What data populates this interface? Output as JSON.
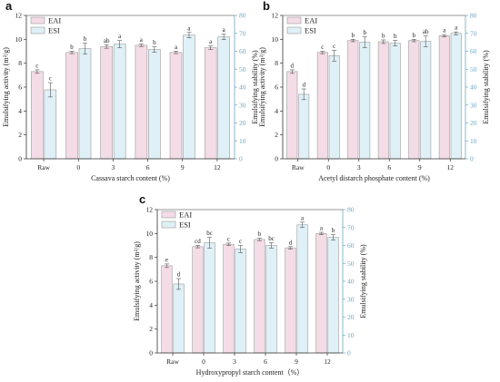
{
  "colors": {
    "eai": "#f4dce6",
    "esi": "#dff0f7",
    "axis_left": "#333333",
    "axis_right": "#6aa6c2",
    "bar_edge": "#9a9a9a"
  },
  "chart_data": [
    {
      "panel": "a",
      "type": "bar",
      "categories": [
        "Raw",
        "0",
        "3",
        "6",
        "9",
        "12"
      ],
      "xlabel": "Cassava starch content (%)",
      "ylabel": "Emulsifying activity (m²/g)",
      "ylabel2": "Emulsifying stability (%)",
      "ylim": [
        0,
        12
      ],
      "yticks": [
        0,
        2,
        4,
        6,
        8,
        10,
        12
      ],
      "y2lim": [
        0,
        80
      ],
      "y2ticks": [
        0,
        10,
        20,
        30,
        40,
        50,
        60,
        70,
        80
      ],
      "legend": [
        "EAI",
        "ESI"
      ],
      "series": [
        {
          "name": "EAI",
          "axis": "left",
          "values": [
            7.3,
            8.9,
            9.4,
            9.5,
            8.9,
            9.3
          ],
          "errors": [
            0.15,
            0.1,
            0.15,
            0.1,
            0.1,
            0.15
          ],
          "labels": [
            "c",
            "b",
            "ab",
            "a",
            "a",
            "a"
          ]
        },
        {
          "name": "ESI",
          "axis": "right",
          "values": [
            38.5,
            61.5,
            64.0,
            61.0,
            69.0,
            68.0
          ],
          "errors": [
            4.0,
            3.0,
            2.0,
            1.5,
            1.5,
            1.5
          ],
          "labels": [
            "c",
            "b",
            "a",
            "b",
            "a",
            "a"
          ]
        }
      ]
    },
    {
      "panel": "b",
      "type": "bar",
      "categories": [
        "Raw",
        "0",
        "3",
        "6",
        "9",
        "12"
      ],
      "xlabel": "Acetyl distarch phosphate content (%)",
      "ylabel": "Emulsifying activity (m²/g)",
      "ylabel2": "Emulsifying stability (%)",
      "ylim": [
        0,
        12
      ],
      "yticks": [
        0,
        2,
        4,
        6,
        8,
        10,
        12
      ],
      "y2lim": [
        0,
        80
      ],
      "y2ticks": [
        0,
        10,
        20,
        30,
        40,
        50,
        60,
        70,
        80
      ],
      "legend": [
        "EAI",
        "ESI"
      ],
      "series": [
        {
          "name": "EAI",
          "axis": "left",
          "values": [
            7.3,
            8.9,
            9.9,
            9.8,
            9.9,
            10.3
          ],
          "errors": [
            0.15,
            0.1,
            0.1,
            0.15,
            0.1,
            0.1
          ],
          "labels": [
            "d",
            "c",
            "b",
            "b",
            "b",
            "a"
          ]
        },
        {
          "name": "ESI",
          "axis": "right",
          "values": [
            36.0,
            57.5,
            65.0,
            64.5,
            65.5,
            70.0
          ],
          "errors": [
            3.0,
            3.0,
            3.0,
            1.5,
            3.0,
            0.8
          ],
          "labels": [
            "d",
            "c",
            "b",
            "b",
            "ab",
            "a"
          ]
        }
      ]
    },
    {
      "panel": "c",
      "type": "bar",
      "categories": [
        "Raw",
        "0",
        "3",
        "6",
        "9",
        "12"
      ],
      "xlabel": "Hydroxypropyl starch content（%）",
      "ylabel": "Emulsifying activity (m²/g)",
      "ylabel2": "Emulsifying stability (%)",
      "ylim": [
        0,
        12
      ],
      "yticks": [
        0,
        2,
        4,
        6,
        8,
        10,
        12
      ],
      "y2lim": [
        0,
        80
      ],
      "y2ticks": [
        0,
        10,
        20,
        30,
        40,
        50,
        60,
        70,
        80
      ],
      "legend": [
        "EAI",
        "ESI"
      ],
      "series": [
        {
          "name": "EAI",
          "axis": "left",
          "values": [
            7.3,
            8.9,
            9.1,
            9.5,
            8.8,
            10.0
          ],
          "errors": [
            0.15,
            0.1,
            0.1,
            0.1,
            0.1,
            0.1
          ],
          "labels": [
            "e",
            "cd",
            "c",
            "b",
            "d",
            "a"
          ]
        },
        {
          "name": "ESI",
          "axis": "right",
          "values": [
            38.5,
            61.5,
            58.0,
            60.0,
            71.5,
            64.5
          ],
          "errors": [
            3.0,
            3.0,
            2.0,
            1.5,
            1.5,
            1.5
          ],
          "labels": [
            "d",
            "bc",
            "c",
            "bc",
            "a",
            "b"
          ]
        }
      ]
    }
  ]
}
